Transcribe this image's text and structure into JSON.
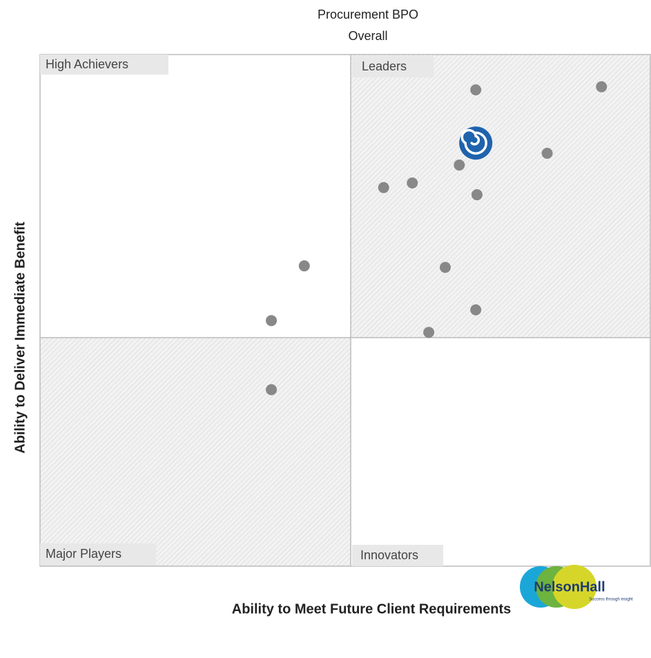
{
  "chart_data": {
    "type": "scatter",
    "title": "Procurement BPO",
    "subtitle": "Overall",
    "xlabel": "Ability to Meet Future Client Requirements",
    "ylabel": "Ability to Deliver Immediate Benefit",
    "quadrants": [
      "High Achievers",
      "Leaders",
      "Major Players",
      "Innovators"
    ],
    "logo": {
      "name": "NelsonHall",
      "tagline": "Success through insight"
    },
    "xlim": [
      0,
      100
    ],
    "ylim": [
      0,
      100
    ],
    "series": [
      {
        "color": "#888888",
        "x": [
          71.4,
          92.0,
          83.1,
          68.7,
          56.3,
          61.0,
          71.6,
          43.3,
          66.4,
          71.4,
          37.9,
          63.7,
          37.9
        ],
        "values": [
          93.1,
          93.7,
          80.7,
          78.4,
          74.0,
          74.9,
          72.6,
          58.7,
          58.4,
          50.1,
          48.0,
          45.7,
          34.5
        ]
      },
      {
        "color": "#1f63ad",
        "x": [
          71.4
        ],
        "values": [
          82.7
        ]
      }
    ]
  }
}
